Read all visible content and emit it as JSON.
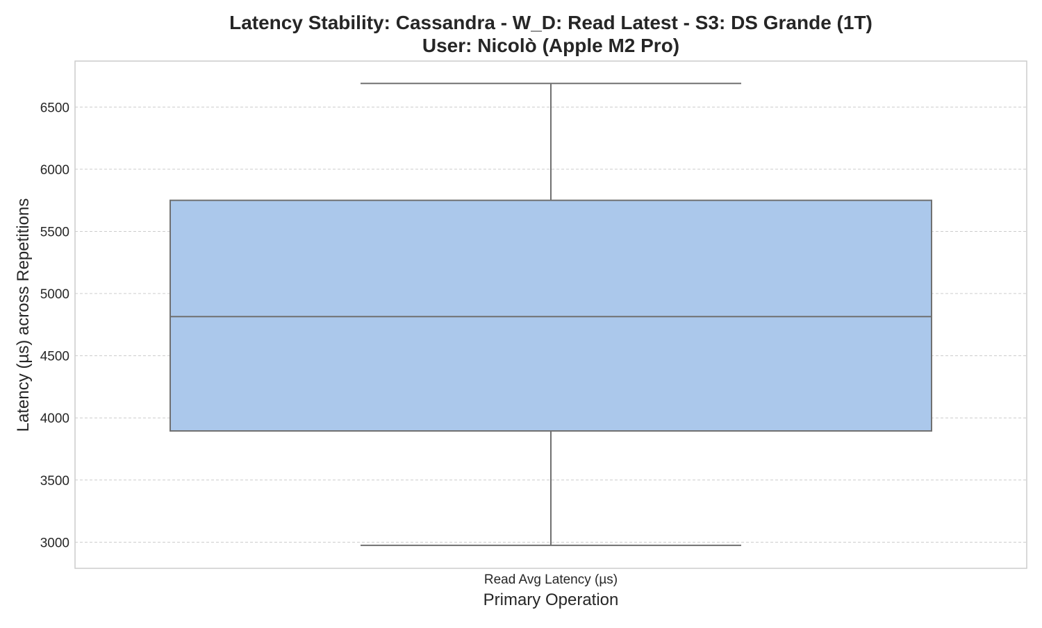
{
  "chart_data": {
    "type": "box",
    "title_line1": "Latency Stability: Cassandra - W_D: Read Latest - S3: DS Grande (1T)",
    "title_line2": "User: Nicolò (Apple M2 Pro)",
    "xlabel": "Primary Operation",
    "ylabel": "Latency (µs) across Repetitions",
    "categories": [
      "Read Avg Latency (µs)"
    ],
    "boxes": [
      {
        "category": "Read Avg Latency (µs)",
        "whisker_low": 2975,
        "q1": 3895,
        "median": 4815,
        "q3": 5750,
        "whisker_high": 6690
      }
    ],
    "ylim": [
      2790,
      6870
    ],
    "yticks": [
      3000,
      3500,
      4000,
      4500,
      5000,
      5500,
      6000,
      6500
    ],
    "grid": "horizontal dashed",
    "colors": {
      "box_fill": "#abc8eb",
      "box_edge": "#707070",
      "grid": "#cccccc",
      "frame": "#cccccc"
    }
  }
}
